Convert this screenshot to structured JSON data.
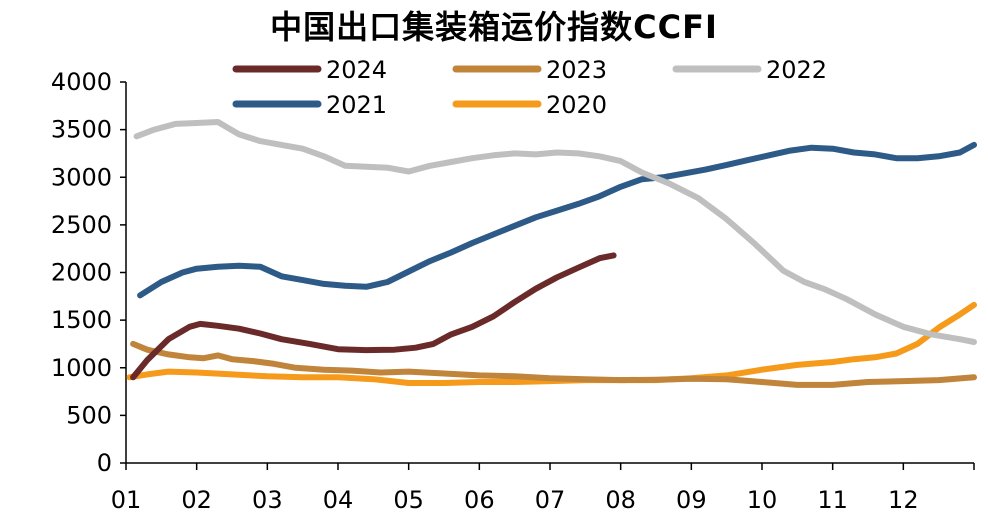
{
  "chart_data": {
    "type": "line",
    "title": "中国出口集装箱运价指数CCFI",
    "xlabel": "",
    "ylabel": "",
    "x_ticks": [
      "01",
      "02",
      "03",
      "04",
      "05",
      "06",
      "07",
      "08",
      "09",
      "10",
      "11",
      "12"
    ],
    "xlim": [
      1,
      13
    ],
    "ylim": [
      0,
      4000
    ],
    "y_ticks": [
      0,
      500,
      1000,
      1500,
      2000,
      2500,
      3000,
      3500,
      4000
    ],
    "grid": false,
    "legend_position": "top",
    "series": [
      {
        "name": "2024",
        "color": "#6b2a2a",
        "x": [
          1.1,
          1.3,
          1.6,
          1.9,
          2.05,
          2.3,
          2.6,
          2.9,
          3.2,
          3.6,
          4.0,
          4.4,
          4.8,
          5.1,
          5.35,
          5.6,
          5.9,
          6.2,
          6.5,
          6.8,
          7.1,
          7.4,
          7.7,
          7.9
        ],
        "y": [
          900,
          1080,
          1300,
          1430,
          1460,
          1440,
          1410,
          1360,
          1300,
          1250,
          1195,
          1185,
          1190,
          1210,
          1250,
          1350,
          1430,
          1540,
          1690,
          1830,
          1950,
          2050,
          2150,
          2180
        ]
      },
      {
        "name": "2023",
        "color": "#c0843a",
        "x": [
          1.1,
          1.3,
          1.6,
          1.9,
          2.1,
          2.3,
          2.5,
          2.8,
          3.1,
          3.4,
          3.8,
          4.2,
          4.6,
          5.0,
          5.5,
          6.0,
          6.5,
          7.0,
          7.5,
          8.0,
          8.5,
          9.0,
          9.5,
          10.0,
          10.5,
          11.0,
          11.5,
          12.0,
          12.5,
          13.0
        ],
        "y": [
          1250,
          1190,
          1140,
          1110,
          1100,
          1130,
          1090,
          1070,
          1040,
          1000,
          980,
          970,
          950,
          960,
          940,
          920,
          910,
          890,
          880,
          870,
          875,
          885,
          880,
          850,
          820,
          820,
          850,
          860,
          870,
          900
        ]
      },
      {
        "name": "2022",
        "color": "#bfbfbf",
        "x": [
          1.15,
          1.4,
          1.7,
          2.0,
          2.3,
          2.6,
          2.9,
          3.2,
          3.5,
          3.8,
          4.1,
          4.4,
          4.7,
          5.0,
          5.3,
          5.6,
          5.9,
          6.2,
          6.5,
          6.8,
          7.1,
          7.4,
          7.7,
          8.0,
          8.3,
          8.7,
          9.1,
          9.5,
          9.9,
          10.3,
          10.6,
          10.9,
          11.2,
          11.6,
          12.0,
          12.4,
          12.8,
          13.0
        ],
        "y": [
          3430,
          3500,
          3560,
          3570,
          3580,
          3450,
          3380,
          3340,
          3300,
          3220,
          3120,
          3110,
          3100,
          3060,
          3120,
          3160,
          3200,
          3230,
          3250,
          3240,
          3260,
          3250,
          3220,
          3170,
          3050,
          2930,
          2780,
          2560,
          2300,
          2020,
          1900,
          1820,
          1720,
          1560,
          1430,
          1350,
          1300,
          1270
        ]
      },
      {
        "name": "2021",
        "color": "#2e5a88",
        "x": [
          1.2,
          1.5,
          1.8,
          2.0,
          2.3,
          2.6,
          2.9,
          3.2,
          3.5,
          3.8,
          4.1,
          4.4,
          4.7,
          5.0,
          5.3,
          5.6,
          5.9,
          6.2,
          6.5,
          6.8,
          7.1,
          7.4,
          7.7,
          8.0,
          8.3,
          8.6,
          8.9,
          9.2,
          9.5,
          9.8,
          10.1,
          10.4,
          10.7,
          11.0,
          11.3,
          11.6,
          11.9,
          12.2,
          12.5,
          12.8,
          13.0
        ],
        "y": [
          1760,
          1900,
          2000,
          2040,
          2060,
          2070,
          2060,
          1960,
          1920,
          1880,
          1860,
          1850,
          1900,
          2010,
          2120,
          2210,
          2310,
          2400,
          2490,
          2580,
          2650,
          2720,
          2800,
          2900,
          2980,
          3000,
          3040,
          3080,
          3130,
          3180,
          3230,
          3280,
          3310,
          3300,
          3260,
          3240,
          3200,
          3200,
          3220,
          3260,
          3340
        ]
      },
      {
        "name": "2020",
        "color": "#f59a1b",
        "x": [
          1.05,
          1.3,
          1.6,
          2.0,
          2.5,
          3.0,
          3.5,
          4.0,
          4.5,
          5.0,
          5.5,
          6.0,
          6.5,
          7.0,
          7.5,
          8.0,
          8.5,
          9.0,
          9.5,
          10.0,
          10.5,
          11.0,
          11.3,
          11.6,
          11.9,
          12.2,
          12.5,
          12.8,
          13.0
        ],
        "y": [
          900,
          930,
          960,
          950,
          930,
          910,
          900,
          900,
          880,
          840,
          840,
          850,
          850,
          860,
          870,
          870,
          870,
          890,
          920,
          980,
          1030,
          1060,
          1090,
          1110,
          1150,
          1250,
          1420,
          1560,
          1660
        ]
      }
    ]
  }
}
